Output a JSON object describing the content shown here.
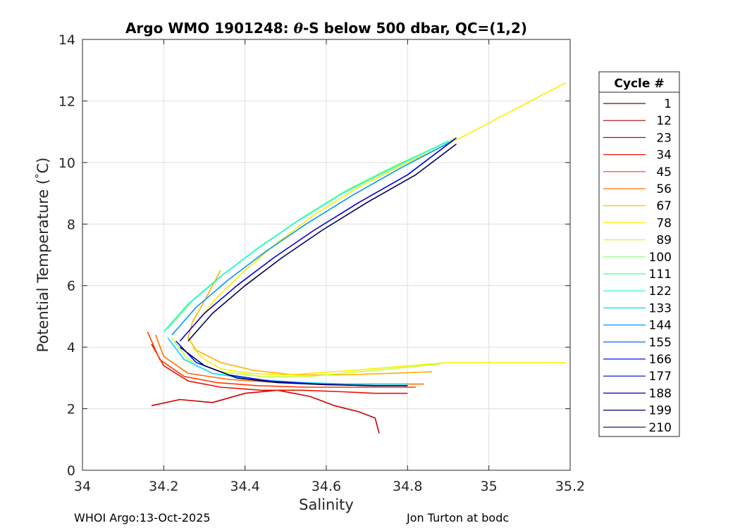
{
  "chart_data": {
    "type": "line",
    "title_parts": [
      "Argo WMO 1901248: ",
      "θ",
      "-S below 500 dbar,  QC=(1,2)"
    ],
    "xlabel": "Salinity",
    "ylabel": "Potential Temperature (°C)",
    "ylabel_parts": [
      "Potential Temperature (",
      "°",
      "C)"
    ],
    "xlim": [
      34.0,
      35.2
    ],
    "ylim": [
      0,
      14
    ],
    "xticks": [
      34.0,
      34.2,
      34.4,
      34.6,
      34.8,
      35.0,
      35.2
    ],
    "xtick_labels": [
      "34",
      "34.2",
      "34.4",
      "34.6",
      "34.8",
      "35",
      "35.2"
    ],
    "yticks": [
      0,
      2,
      4,
      6,
      8,
      10,
      12,
      14
    ],
    "ytick_labels": [
      "0",
      "2",
      "4",
      "6",
      "8",
      "10",
      "12",
      "14"
    ],
    "grid": true,
    "legend": {
      "title": "Cycle #",
      "placement": "right",
      "entries": [
        {
          "label": "1",
          "color": "#7f0000"
        },
        {
          "label": "12",
          "color": "#a30000"
        },
        {
          "label": "23",
          "color": "#cc0000"
        },
        {
          "label": "34",
          "color": "#ee1000"
        },
        {
          "label": "45",
          "color": "#ff3a00"
        },
        {
          "label": "56",
          "color": "#ff7000"
        },
        {
          "label": "67",
          "color": "#ffb000"
        },
        {
          "label": "78",
          "color": "#ffee00"
        },
        {
          "label": "89",
          "color": "#c8ff30"
        },
        {
          "label": "100",
          "color": "#86ff70"
        },
        {
          "label": "111",
          "color": "#44ff9c"
        },
        {
          "label": "122",
          "color": "#10ffd0"
        },
        {
          "label": "133",
          "color": "#00d8ff"
        },
        {
          "label": "144",
          "color": "#0096ff"
        },
        {
          "label": "155",
          "color": "#0050ff"
        },
        {
          "label": "166",
          "color": "#0010ff"
        },
        {
          "label": "177",
          "color": "#0000cc"
        },
        {
          "label": "188",
          "color": "#00009a"
        },
        {
          "label": "199",
          "color": "#00006e"
        },
        {
          "label": "210",
          "color": "#000050"
        }
      ]
    },
    "series": [
      {
        "color": "#cc0000",
        "x": [
          34.17,
          34.24,
          34.32,
          34.4,
          34.48,
          34.56,
          34.62,
          34.68,
          34.72,
          34.73
        ],
        "y": [
          2.1,
          2.3,
          2.2,
          2.5,
          2.6,
          2.4,
          2.1,
          1.9,
          1.7,
          1.2
        ]
      },
      {
        "color": "#ee1000",
        "x": [
          34.17,
          34.2,
          34.26,
          34.34,
          34.44,
          34.54,
          34.64,
          34.72,
          34.78,
          34.8
        ],
        "y": [
          4.1,
          3.4,
          2.9,
          2.7,
          2.6,
          2.6,
          2.55,
          2.5,
          2.5,
          2.5
        ]
      },
      {
        "color": "#ff3a00",
        "x": [
          34.16,
          34.19,
          34.25,
          34.33,
          34.43,
          34.55,
          34.65,
          34.75,
          34.82
        ],
        "y": [
          4.5,
          3.6,
          3.05,
          2.85,
          2.75,
          2.7,
          2.7,
          2.7,
          2.7
        ]
      },
      {
        "color": "#ff7000",
        "x": [
          34.18,
          34.2,
          34.26,
          34.36,
          34.48,
          34.6,
          34.72,
          34.84
        ],
        "y": [
          4.4,
          3.7,
          3.15,
          2.95,
          2.85,
          2.8,
          2.8,
          2.8
        ]
      },
      {
        "color": "#ffb000",
        "x": [
          34.34,
          34.3,
          34.27,
          34.26,
          34.28,
          34.34,
          34.42,
          34.52,
          34.64,
          34.76,
          34.86
        ],
        "y": [
          6.5,
          5.5,
          4.8,
          4.3,
          3.9,
          3.5,
          3.25,
          3.1,
          3.1,
          3.15,
          3.2
        ]
      },
      {
        "color": "#ffee00",
        "x": [
          34.27,
          34.3,
          34.34,
          34.41,
          34.5,
          34.62,
          34.76,
          34.9,
          35.05,
          35.19
        ],
        "y": [
          4.0,
          3.6,
          3.3,
          3.15,
          3.1,
          3.2,
          3.35,
          3.5,
          3.5,
          3.5
        ]
      },
      {
        "color": "#ffee00",
        "x": [
          34.28,
          34.33,
          34.4,
          34.48,
          34.57,
          34.68,
          34.8,
          34.93,
          35.06,
          35.19
        ],
        "y": [
          4.8,
          5.6,
          6.5,
          7.4,
          8.3,
          9.2,
          10.0,
          10.8,
          11.7,
          12.6
        ]
      },
      {
        "color": "#c8ff30",
        "x": [
          34.22,
          34.26,
          34.34,
          34.44,
          34.56,
          34.68,
          34.8,
          34.88
        ],
        "y": [
          4.3,
          3.6,
          3.2,
          3.05,
          3.05,
          3.2,
          3.35,
          3.45
        ]
      },
      {
        "color": "#86ff70",
        "x": [
          34.21,
          34.27,
          34.35,
          34.44,
          34.54,
          34.65,
          34.77,
          34.92
        ],
        "y": [
          4.6,
          5.5,
          6.4,
          7.3,
          8.2,
          9.1,
          9.9,
          10.8
        ]
      },
      {
        "color": "#10ffd0",
        "x": [
          34.2,
          34.26,
          34.34,
          34.43,
          34.53,
          34.64,
          34.76,
          34.9
        ],
        "y": [
          4.5,
          5.4,
          6.3,
          7.2,
          8.1,
          9.0,
          9.8,
          10.7
        ]
      },
      {
        "color": "#00d8ff",
        "x": [
          34.21,
          34.25,
          34.32,
          34.42,
          34.54,
          34.66,
          34.8
        ],
        "y": [
          4.3,
          3.6,
          3.15,
          2.95,
          2.85,
          2.8,
          2.8
        ]
      },
      {
        "color": "#0096ff",
        "x": [
          34.22,
          34.28,
          34.36,
          34.45,
          34.55,
          34.66,
          34.78,
          34.91
        ],
        "y": [
          4.4,
          5.3,
          6.2,
          7.1,
          8.0,
          8.9,
          9.8,
          10.7
        ]
      },
      {
        "color": "#0010ff",
        "x": [
          34.23,
          34.28,
          34.36,
          34.46,
          34.58,
          34.7,
          34.8
        ],
        "y": [
          4.2,
          3.5,
          3.1,
          2.9,
          2.8,
          2.75,
          2.75
        ]
      },
      {
        "color": "#0000cc",
        "x": [
          34.24,
          34.3,
          34.38,
          34.47,
          34.57,
          34.68,
          34.8,
          34.92
        ],
        "y": [
          4.2,
          5.1,
          6.0,
          6.9,
          7.8,
          8.7,
          9.6,
          10.8
        ]
      },
      {
        "color": "#000050",
        "x": [
          34.26,
          34.32,
          34.4,
          34.49,
          34.59,
          34.7,
          34.82,
          34.92
        ],
        "y": [
          4.2,
          5.1,
          6.0,
          6.9,
          7.8,
          8.7,
          9.6,
          10.6
        ]
      },
      {
        "color": "#000050",
        "x": [
          34.24,
          34.3,
          34.38,
          34.48,
          34.6,
          34.72,
          34.8
        ],
        "y": [
          4.0,
          3.4,
          3.0,
          2.85,
          2.78,
          2.75,
          2.75
        ]
      }
    ]
  },
  "footer": {
    "left": "WHOI Argo:13-Oct-2025",
    "right": "Jon Turton at bodc"
  }
}
